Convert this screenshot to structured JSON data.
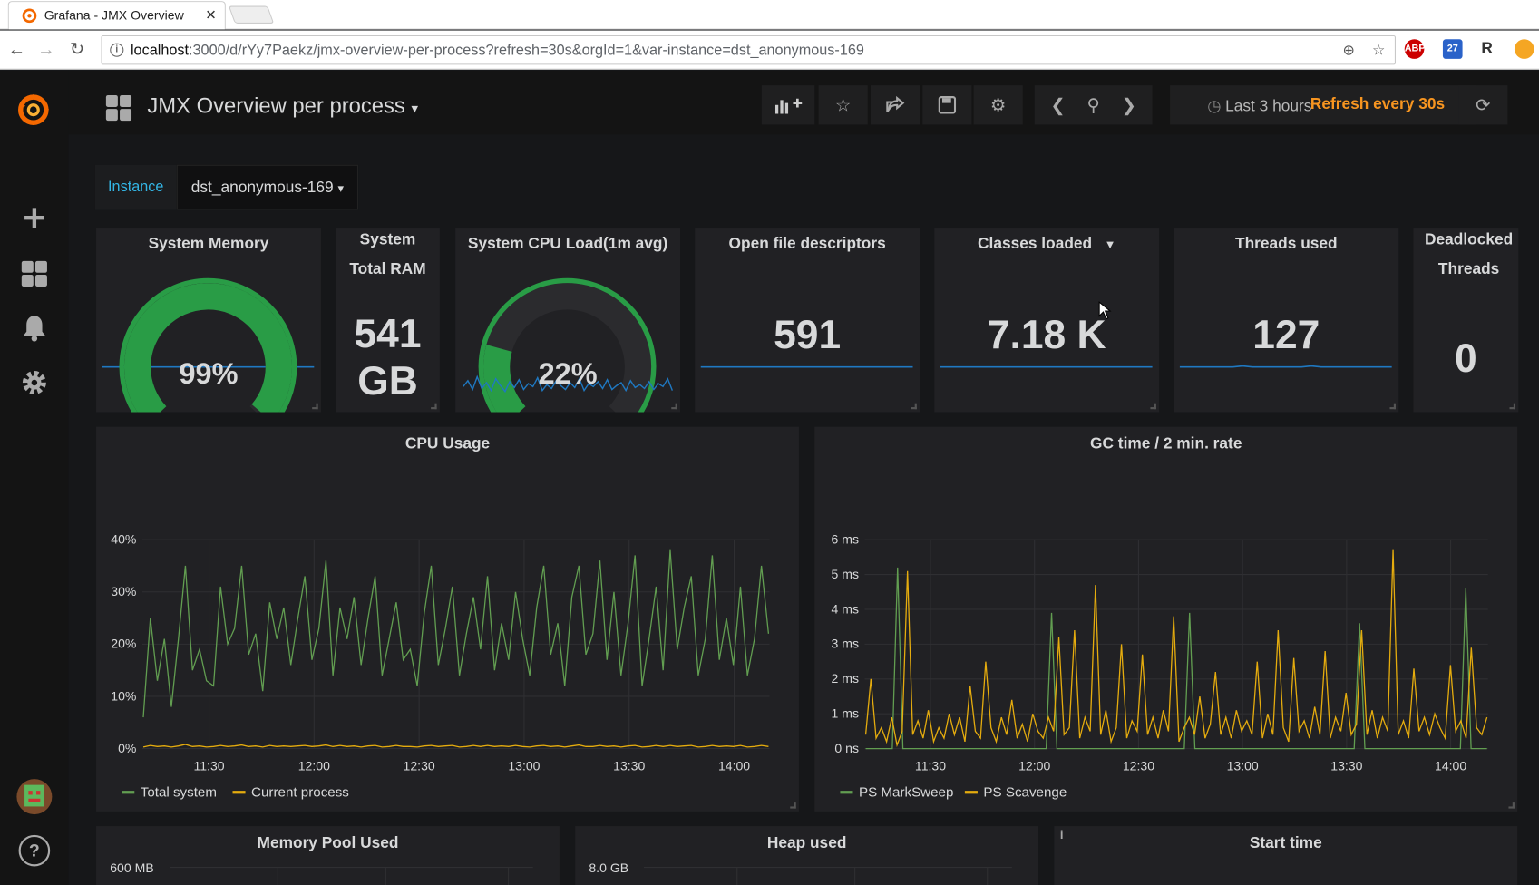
{
  "browser": {
    "tab_title": "Grafana - JMX Overview",
    "url_host": "localhost",
    "url_rest": ":3000/d/rYy7Paekz/jmx-overview-per-process?refresh=30s&orgId=1&var-instance=dst_anonymous-169",
    "ext_abp": "ABP",
    "ext_badge": "27",
    "ext_r": "R"
  },
  "header": {
    "title": "JMX Overview per process",
    "time_range": "Last 3 hours",
    "refresh": "Refresh every 30s"
  },
  "variables": {
    "label": "Instance",
    "value": "dst_anonymous-169"
  },
  "stats": {
    "system_memory": {
      "title": "System Memory",
      "value": "99%"
    },
    "system_total_ram": {
      "title": "System Total RAM",
      "value_line1": "541",
      "value_line2": "GB"
    },
    "system_cpu_load": {
      "title": "System CPU Load(1m avg)",
      "value": "22%"
    },
    "open_fds": {
      "title": "Open file descriptors",
      "value": "591"
    },
    "classes_loaded": {
      "title": "Classes loaded",
      "value": "7.18 K"
    },
    "threads_used": {
      "title": "Threads used",
      "value": "127"
    },
    "deadlocked": {
      "title": "Deadlocked Threads",
      "value": "0"
    }
  },
  "bottom_panels": {
    "memory_pool": {
      "title": "Memory Pool Used",
      "first_tick": "600 MB"
    },
    "heap_used": {
      "title": "Heap used",
      "first_tick": "8.0 GB"
    },
    "start_time": {
      "title": "Start time",
      "info": "i"
    }
  },
  "colors": {
    "green": "#629e51",
    "yellow": "#e5ac0e",
    "blue": "#1f78c1",
    "gauge_green": "#299c46",
    "orange": "#f79520"
  },
  "chart_data": [
    {
      "type": "gauge",
      "title": "System Memory",
      "value": 99,
      "unit": "%",
      "range": [
        0,
        100
      ]
    },
    {
      "type": "gauge",
      "title": "System CPU Load(1m avg)",
      "value": 22,
      "unit": "%",
      "range": [
        0,
        100
      ]
    },
    {
      "type": "line",
      "title": "CPU Usage",
      "xlabel": "",
      "ylabel": "",
      "x_ticks": [
        "11:30",
        "12:00",
        "12:30",
        "13:00",
        "13:30",
        "14:00"
      ],
      "y_ticks": [
        "0%",
        "10%",
        "20%",
        "30%",
        "40%"
      ],
      "ylim": [
        0,
        40
      ],
      "series": [
        {
          "name": "Total system",
          "color": "#629e51",
          "values": [
            6,
            25,
            13,
            21,
            8,
            21,
            35,
            15,
            19,
            13,
            12,
            31,
            20,
            23,
            35,
            18,
            22,
            11,
            28,
            21,
            27,
            16,
            25,
            33,
            17,
            23,
            36,
            14,
            27,
            21,
            29,
            16,
            25,
            33,
            14,
            21,
            28,
            17,
            19,
            12,
            26,
            35,
            16,
            23,
            31,
            14,
            22,
            29,
            19,
            33,
            15,
            24,
            17,
            30,
            21,
            14,
            27,
            35,
            18,
            24,
            12,
            29,
            35,
            18,
            22,
            36,
            17,
            30,
            14,
            24,
            37,
            12,
            21,
            31,
            15,
            38,
            19,
            27,
            33,
            14,
            21,
            37,
            17,
            25,
            16,
            31,
            14,
            21,
            35,
            22
          ]
        },
        {
          "name": "Current process",
          "color": "#e5ac0e",
          "values": [
            0.3,
            0.6,
            0.4,
            0.5,
            0.3,
            0.5,
            0.8,
            0.4,
            0.5,
            0.3,
            0.4,
            0.6,
            0.4,
            0.5,
            0.7,
            0.4,
            0.5,
            0.3,
            0.6,
            0.4,
            0.5,
            0.4,
            0.5,
            0.6,
            0.4,
            0.5,
            0.7,
            0.4,
            0.6,
            0.4,
            0.5,
            0.3,
            0.5,
            0.6,
            0.3,
            0.4,
            0.6,
            0.4,
            0.4,
            0.3,
            0.5,
            0.6,
            0.4,
            0.5,
            0.6,
            0.3,
            0.4,
            0.6,
            0.4,
            0.6,
            0.4,
            0.5,
            0.4,
            0.6,
            0.4,
            0.3,
            0.5,
            0.6,
            0.4,
            0.5,
            0.3,
            0.5,
            0.7,
            0.4,
            0.4,
            0.6,
            0.4,
            0.5,
            0.3,
            0.5,
            0.6,
            0.3,
            0.4,
            0.6,
            0.4,
            0.6,
            0.4,
            0.5,
            0.6,
            0.3,
            0.4,
            0.6,
            0.4,
            0.5,
            0.4,
            0.6,
            0.3,
            0.4,
            0.6,
            0.4
          ]
        }
      ]
    },
    {
      "type": "line",
      "title": "GC time / 2 min. rate",
      "xlabel": "",
      "ylabel": "",
      "x_ticks": [
        "11:30",
        "12:00",
        "12:30",
        "13:00",
        "13:30",
        "14:00"
      ],
      "y_ticks": [
        "0 ns",
        "1 ms",
        "2 ms",
        "3 ms",
        "4 ms",
        "5 ms",
        "6 ms"
      ],
      "ylim": [
        0,
        6
      ],
      "series": [
        {
          "name": "PS MarkSweep",
          "color": "#629e51",
          "values": [
            0,
            0,
            0,
            0,
            0,
            0,
            5.2,
            0,
            0,
            0,
            0,
            0,
            0,
            0,
            0,
            0,
            0,
            0,
            0,
            0,
            0,
            0,
            0,
            0,
            0,
            0,
            0,
            0,
            0,
            0,
            0,
            0,
            0,
            0,
            0,
            3.9,
            0,
            0,
            0,
            0,
            0,
            0,
            0,
            0,
            0,
            0,
            0,
            0,
            0,
            0,
            0,
            0,
            0,
            0,
            0,
            0,
            0,
            0,
            0,
            0,
            0,
            3.9,
            0,
            0,
            0,
            0,
            0,
            0,
            0,
            0,
            0,
            0,
            0,
            0,
            0,
            0,
            0,
            0,
            0,
            0,
            0,
            0,
            0,
            0,
            0,
            0,
            0,
            0,
            0,
            0,
            0,
            0,
            0,
            3.6,
            0,
            0,
            0,
            0,
            0,
            0,
            0,
            0,
            0,
            0,
            0,
            0,
            0,
            0,
            0,
            0,
            0,
            0,
            0,
            4.6,
            0,
            0,
            0,
            0
          ]
        },
        {
          "name": "PS Scavenge",
          "color": "#e5ac0e",
          "values": [
            0.4,
            2.0,
            0.3,
            0.6,
            0.2,
            0.9,
            0.1,
            0.5,
            5.1,
            0.4,
            0.8,
            0.3,
            1.1,
            0.2,
            0.6,
            0.3,
            1.0,
            0.4,
            0.9,
            0.2,
            1.8,
            0.5,
            0.3,
            2.5,
            0.6,
            0.2,
            0.9,
            0.4,
            1.4,
            0.3,
            0.7,
            0.2,
            1.0,
            0.5,
            0.3,
            0.9,
            0.5,
            3.2,
            0.4,
            0.6,
            3.4,
            0.3,
            0.9,
            0.5,
            4.7,
            0.4,
            1.1,
            0.2,
            0.6,
            3.0,
            0.3,
            0.8,
            0.5,
            2.7,
            0.4,
            0.9,
            0.3,
            1.1,
            0.5,
            3.8,
            0.2,
            0.6,
            0.9,
            0.4,
            1.5,
            0.3,
            0.7,
            2.2,
            0.4,
            0.9,
            0.3,
            1.1,
            0.5,
            0.8,
            0.4,
            2.5,
            0.3,
            1.0,
            0.4,
            3.4,
            0.6,
            0.2,
            2.6,
            0.5,
            0.8,
            0.3,
            1.2,
            0.4,
            2.8,
            0.3,
            0.9,
            0.5,
            1.6,
            0.4,
            0.7,
            3.4,
            0.4,
            1.1,
            0.3,
            0.9,
            0.5,
            5.7,
            0.4,
            0.8,
            0.3,
            2.3,
            0.5,
            0.9,
            0.4,
            1.0,
            0.6,
            0.3,
            2.4,
            0.5,
            0.8,
            0.3,
            2.9,
            0.6,
            0.4,
            0.9
          ]
        }
      ]
    }
  ]
}
